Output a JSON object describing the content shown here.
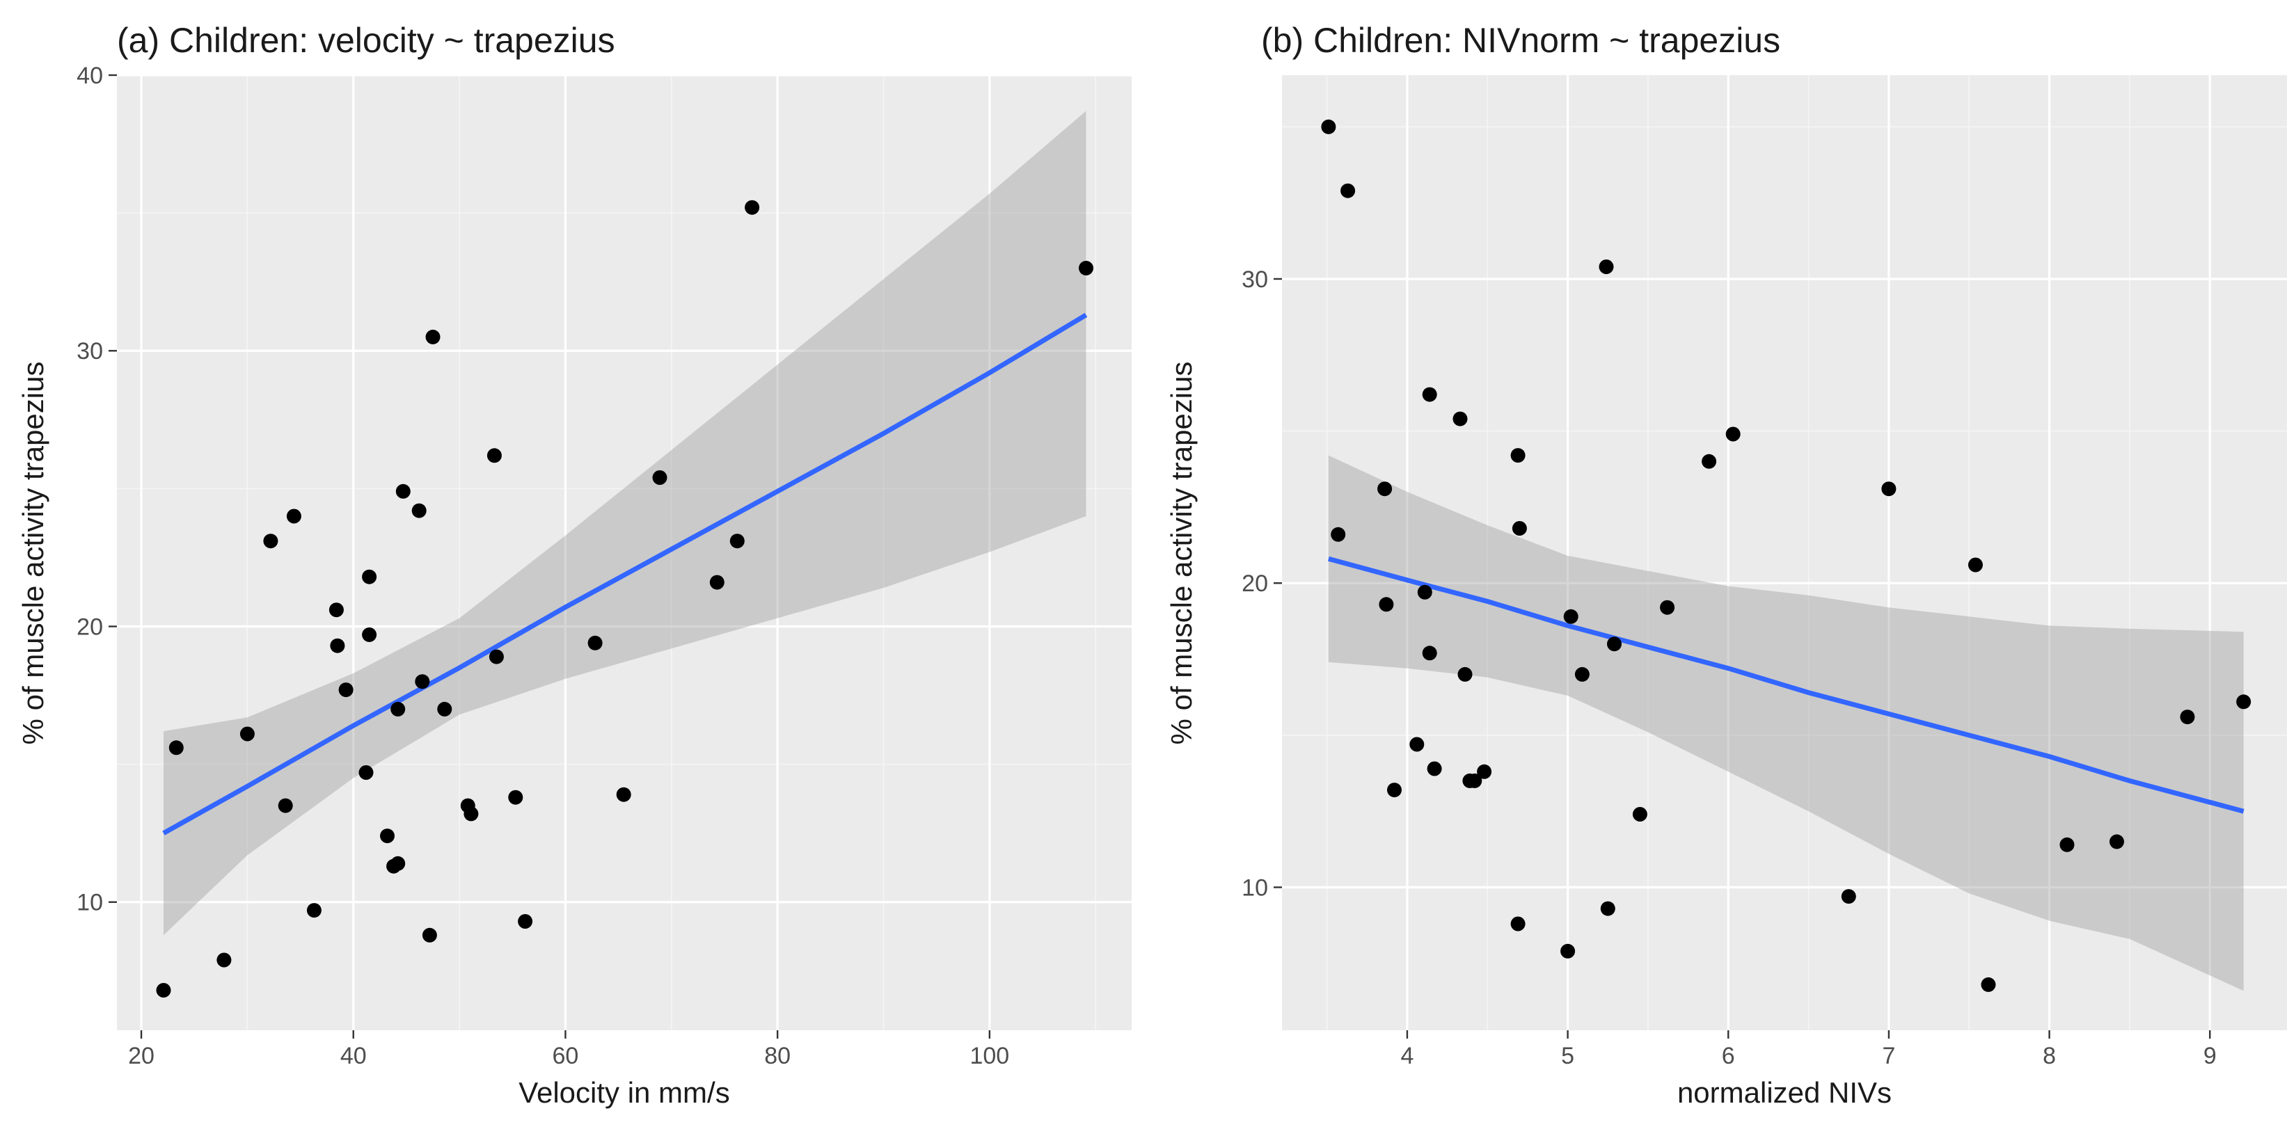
{
  "figure": {
    "colors": {
      "panel": "#ebebeb",
      "grid": "#ffffff",
      "points": "#000000",
      "fit": "#3366ff",
      "band": "#999999"
    }
  },
  "chart_data": [
    {
      "type": "scatter",
      "title": "(a) Children: velocity ~ trapezius",
      "xlabel": "Velocity in mm/s",
      "ylabel": "% of muscle activity trapezius",
      "xlim": [
        17.7,
        113.4
      ],
      "ylim": [
        5.35,
        40.0
      ],
      "xticks": [
        20,
        40,
        60,
        80,
        100
      ],
      "yticks": [
        10,
        20,
        30,
        40
      ],
      "xtick_labels": [
        "20",
        "40",
        "60",
        "80",
        "100"
      ],
      "ytick_labels": [
        "10",
        "20",
        "30",
        "40"
      ],
      "points": [
        {
          "x": 22.1,
          "y": 6.8
        },
        {
          "x": 23.3,
          "y": 15.6
        },
        {
          "x": 27.8,
          "y": 7.9
        },
        {
          "x": 30.0,
          "y": 16.1
        },
        {
          "x": 32.2,
          "y": 23.1
        },
        {
          "x": 33.6,
          "y": 13.5
        },
        {
          "x": 34.4,
          "y": 24.0
        },
        {
          "x": 36.3,
          "y": 9.7
        },
        {
          "x": 38.4,
          "y": 20.6
        },
        {
          "x": 38.5,
          "y": 19.3
        },
        {
          "x": 39.3,
          "y": 17.7
        },
        {
          "x": 41.2,
          "y": 14.7
        },
        {
          "x": 41.5,
          "y": 21.8
        },
        {
          "x": 41.5,
          "y": 19.7
        },
        {
          "x": 43.2,
          "y": 12.4
        },
        {
          "x": 43.8,
          "y": 11.3
        },
        {
          "x": 44.2,
          "y": 11.4
        },
        {
          "x": 44.2,
          "y": 17.0
        },
        {
          "x": 44.7,
          "y": 24.9
        },
        {
          "x": 46.2,
          "y": 24.2
        },
        {
          "x": 46.5,
          "y": 18.0
        },
        {
          "x": 47.2,
          "y": 8.8
        },
        {
          "x": 47.5,
          "y": 30.5
        },
        {
          "x": 48.6,
          "y": 17.0
        },
        {
          "x": 50.8,
          "y": 13.5
        },
        {
          "x": 51.1,
          "y": 13.2
        },
        {
          "x": 53.3,
          "y": 26.2
        },
        {
          "x": 53.5,
          "y": 18.9
        },
        {
          "x": 55.3,
          "y": 13.8
        },
        {
          "x": 56.2,
          "y": 9.3
        },
        {
          "x": 62.8,
          "y": 19.4
        },
        {
          "x": 65.5,
          "y": 13.9
        },
        {
          "x": 68.9,
          "y": 25.4
        },
        {
          "x": 74.3,
          "y": 21.6
        },
        {
          "x": 76.2,
          "y": 23.1
        },
        {
          "x": 77.6,
          "y": 35.2
        },
        {
          "x": 109.1,
          "y": 33.0
        }
      ],
      "fit": {
        "x": [
          22.1,
          30,
          40,
          50,
          60,
          70,
          80,
          90,
          100,
          109.1
        ],
        "y": [
          12.5,
          14.2,
          16.4,
          18.5,
          20.7,
          22.8,
          24.9,
          27.0,
          29.2,
          31.3
        ],
        "lower": [
          8.8,
          11.7,
          14.5,
          16.8,
          18.1,
          19.2,
          20.3,
          21.4,
          22.7,
          24.0
        ],
        "upper": [
          16.2,
          16.7,
          18.3,
          20.3,
          23.3,
          26.4,
          29.5,
          32.6,
          35.7,
          38.7
        ]
      }
    },
    {
      "type": "scatter",
      "title": "(b) Children: NIVnorm ~ trapezius",
      "xlabel": "normalized NIVs",
      "ylabel": "% of muscle activity trapezius",
      "xlim": [
        3.22,
        9.48
      ],
      "ylim": [
        5.3,
        36.7
      ],
      "xticks": [
        4,
        5,
        6,
        7,
        8,
        9
      ],
      "yticks": [
        10,
        20,
        30
      ],
      "xtick_labels": [
        "4",
        "5",
        "6",
        "7",
        "8",
        "9"
      ],
      "ytick_labels": [
        "10",
        "20",
        "30"
      ],
      "points": [
        {
          "x": 3.51,
          "y": 35.0
        },
        {
          "x": 3.57,
          "y": 21.6
        },
        {
          "x": 3.63,
          "y": 32.9
        },
        {
          "x": 3.86,
          "y": 23.1
        },
        {
          "x": 3.87,
          "y": 19.3
        },
        {
          "x": 3.92,
          "y": 13.2
        },
        {
          "x": 4.06,
          "y": 14.7
        },
        {
          "x": 4.11,
          "y": 19.7
        },
        {
          "x": 4.14,
          "y": 26.2
        },
        {
          "x": 4.14,
          "y": 17.7
        },
        {
          "x": 4.17,
          "y": 13.9
        },
        {
          "x": 4.33,
          "y": 25.4
        },
        {
          "x": 4.36,
          "y": 17.0
        },
        {
          "x": 4.39,
          "y": 13.5
        },
        {
          "x": 4.42,
          "y": 13.5
        },
        {
          "x": 4.48,
          "y": 13.8
        },
        {
          "x": 4.69,
          "y": 24.2
        },
        {
          "x": 4.69,
          "y": 8.8
        },
        {
          "x": 4.7,
          "y": 21.8
        },
        {
          "x": 5.0,
          "y": 7.9
        },
        {
          "x": 5.02,
          "y": 18.9
        },
        {
          "x": 5.09,
          "y": 17.0
        },
        {
          "x": 5.24,
          "y": 30.4
        },
        {
          "x": 5.25,
          "y": 9.3
        },
        {
          "x": 5.29,
          "y": 18.0
        },
        {
          "x": 5.45,
          "y": 12.4
        },
        {
          "x": 5.62,
          "y": 19.2
        },
        {
          "x": 5.88,
          "y": 24.0
        },
        {
          "x": 6.03,
          "y": 24.9
        },
        {
          "x": 6.75,
          "y": 9.7
        },
        {
          "x": 7.0,
          "y": 23.1
        },
        {
          "x": 7.54,
          "y": 20.6
        },
        {
          "x": 7.62,
          "y": 6.8
        },
        {
          "x": 8.11,
          "y": 11.4
        },
        {
          "x": 8.42,
          "y": 11.5
        },
        {
          "x": 8.86,
          "y": 15.6
        },
        {
          "x": 9.21,
          "y": 16.1
        }
      ],
      "fit": {
        "x": [
          3.51,
          4,
          4.5,
          5,
          5.5,
          6,
          6.5,
          7,
          7.5,
          8,
          8.5,
          9.21
        ],
        "y": [
          20.8,
          20.1,
          19.4,
          18.6,
          17.9,
          17.2,
          16.4,
          15.7,
          15.0,
          14.3,
          13.5,
          12.5
        ],
        "lower": [
          17.4,
          17.2,
          16.9,
          16.3,
          15.1,
          13.8,
          12.5,
          11.1,
          9.8,
          8.9,
          8.3,
          6.6
        ],
        "upper": [
          24.2,
          23.0,
          21.9,
          20.9,
          20.4,
          19.9,
          19.6,
          19.2,
          18.9,
          18.6,
          18.5,
          18.4
        ]
      }
    }
  ]
}
